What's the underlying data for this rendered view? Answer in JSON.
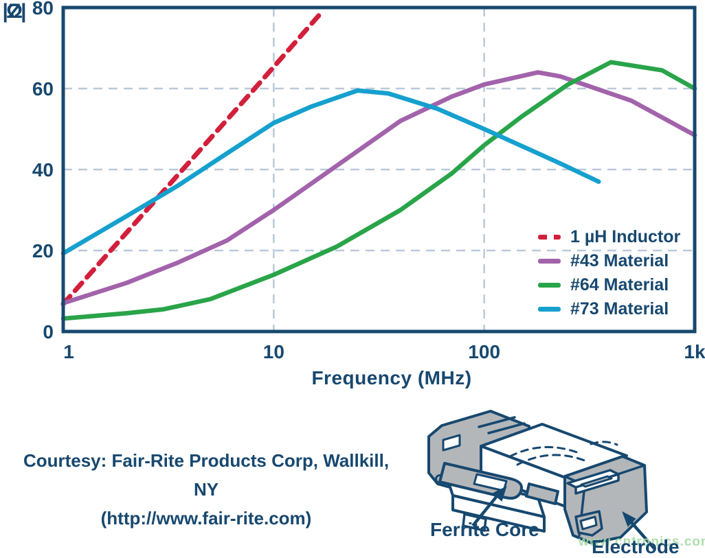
{
  "colors": {
    "navy": "#17486F",
    "grid": "#B9C9D9",
    "inductor_red": "#D21F3C",
    "material43_purple": "#A263AB",
    "material64_green": "#29A449",
    "material73_cyan": "#15A0CE",
    "electrode_gray": "#B4B7BA",
    "watermark_green": "#A5DBA5"
  },
  "chart_data": {
    "type": "line",
    "title": "",
    "xlabel": "Frequency (MHz)",
    "ylabel_line1": "|Z|",
    "ylabel_line2": "Ω",
    "x_scale": "log",
    "x_range": [
      1,
      1000
    ],
    "y_range": [
      0,
      80
    ],
    "x_ticks": [
      {
        "v": 1,
        "label": "1",
        "dx": 8
      },
      {
        "v": 10,
        "label": "10",
        "dx": 0
      },
      {
        "v": 100,
        "label": "100",
        "dx": 0
      },
      {
        "v": 1000,
        "label": "1k",
        "dx": 0
      }
    ],
    "y_ticks": [
      {
        "v": 0,
        "label": "0"
      },
      {
        "v": 20,
        "label": "20"
      },
      {
        "v": 40,
        "label": "40"
      },
      {
        "v": 60,
        "label": "60"
      },
      {
        "v": 80,
        "label": "80"
      }
    ],
    "x_gridlines": [
      10,
      100
    ],
    "y_gridlines": [
      20,
      40,
      60
    ],
    "grid": true,
    "legend_position": "inside-right",
    "series": [
      {
        "name": "1 µH Inductor",
        "color": "#D21F3C",
        "dash": true,
        "points": [
          [
            1,
            6.8
          ],
          [
            2,
            24.4
          ],
          [
            4,
            42
          ],
          [
            8,
            59.6
          ],
          [
            17,
            79
          ]
        ]
      },
      {
        "name": "#43 Material",
        "color": "#A263AB",
        "dash": false,
        "points": [
          [
            1,
            7
          ],
          [
            2,
            12
          ],
          [
            3.5,
            17
          ],
          [
            6,
            22.5
          ],
          [
            10,
            30
          ],
          [
            20,
            41
          ],
          [
            40,
            52
          ],
          [
            70,
            58
          ],
          [
            100,
            61
          ],
          [
            180,
            64
          ],
          [
            230,
            63
          ],
          [
            500,
            57
          ],
          [
            1000,
            48.5
          ]
        ]
      },
      {
        "name": "#64 Material",
        "color": "#29A449",
        "dash": false,
        "points": [
          [
            1,
            3.2
          ],
          [
            2,
            4.5
          ],
          [
            3,
            5.5
          ],
          [
            5,
            8
          ],
          [
            10,
            14
          ],
          [
            20,
            21
          ],
          [
            40,
            30
          ],
          [
            70,
            39
          ],
          [
            100,
            46
          ],
          [
            150,
            53
          ],
          [
            250,
            61
          ],
          [
            400,
            66.5
          ],
          [
            700,
            64.5
          ],
          [
            1000,
            60
          ]
        ]
      },
      {
        "name": "#73 Material",
        "color": "#15A0CE",
        "dash": false,
        "points": [
          [
            1,
            19.3
          ],
          [
            2,
            28.5
          ],
          [
            3.5,
            36
          ],
          [
            6,
            44
          ],
          [
            10,
            51.5
          ],
          [
            15,
            55.5
          ],
          [
            25,
            59.5
          ],
          [
            35,
            58.8
          ],
          [
            60,
            55
          ],
          [
            100,
            50
          ],
          [
            230,
            41.5
          ],
          [
            350,
            37
          ]
        ]
      }
    ]
  },
  "courtesy": {
    "line1": "Courtesy: Fair-Rite Products Corp, Wallkill, NY",
    "line2": "(http://www.fair-rite.com)"
  },
  "diagram": {
    "label_core": "Ferrite Core",
    "label_electrode": "Electrode"
  },
  "watermark": "www.cntronics.com"
}
